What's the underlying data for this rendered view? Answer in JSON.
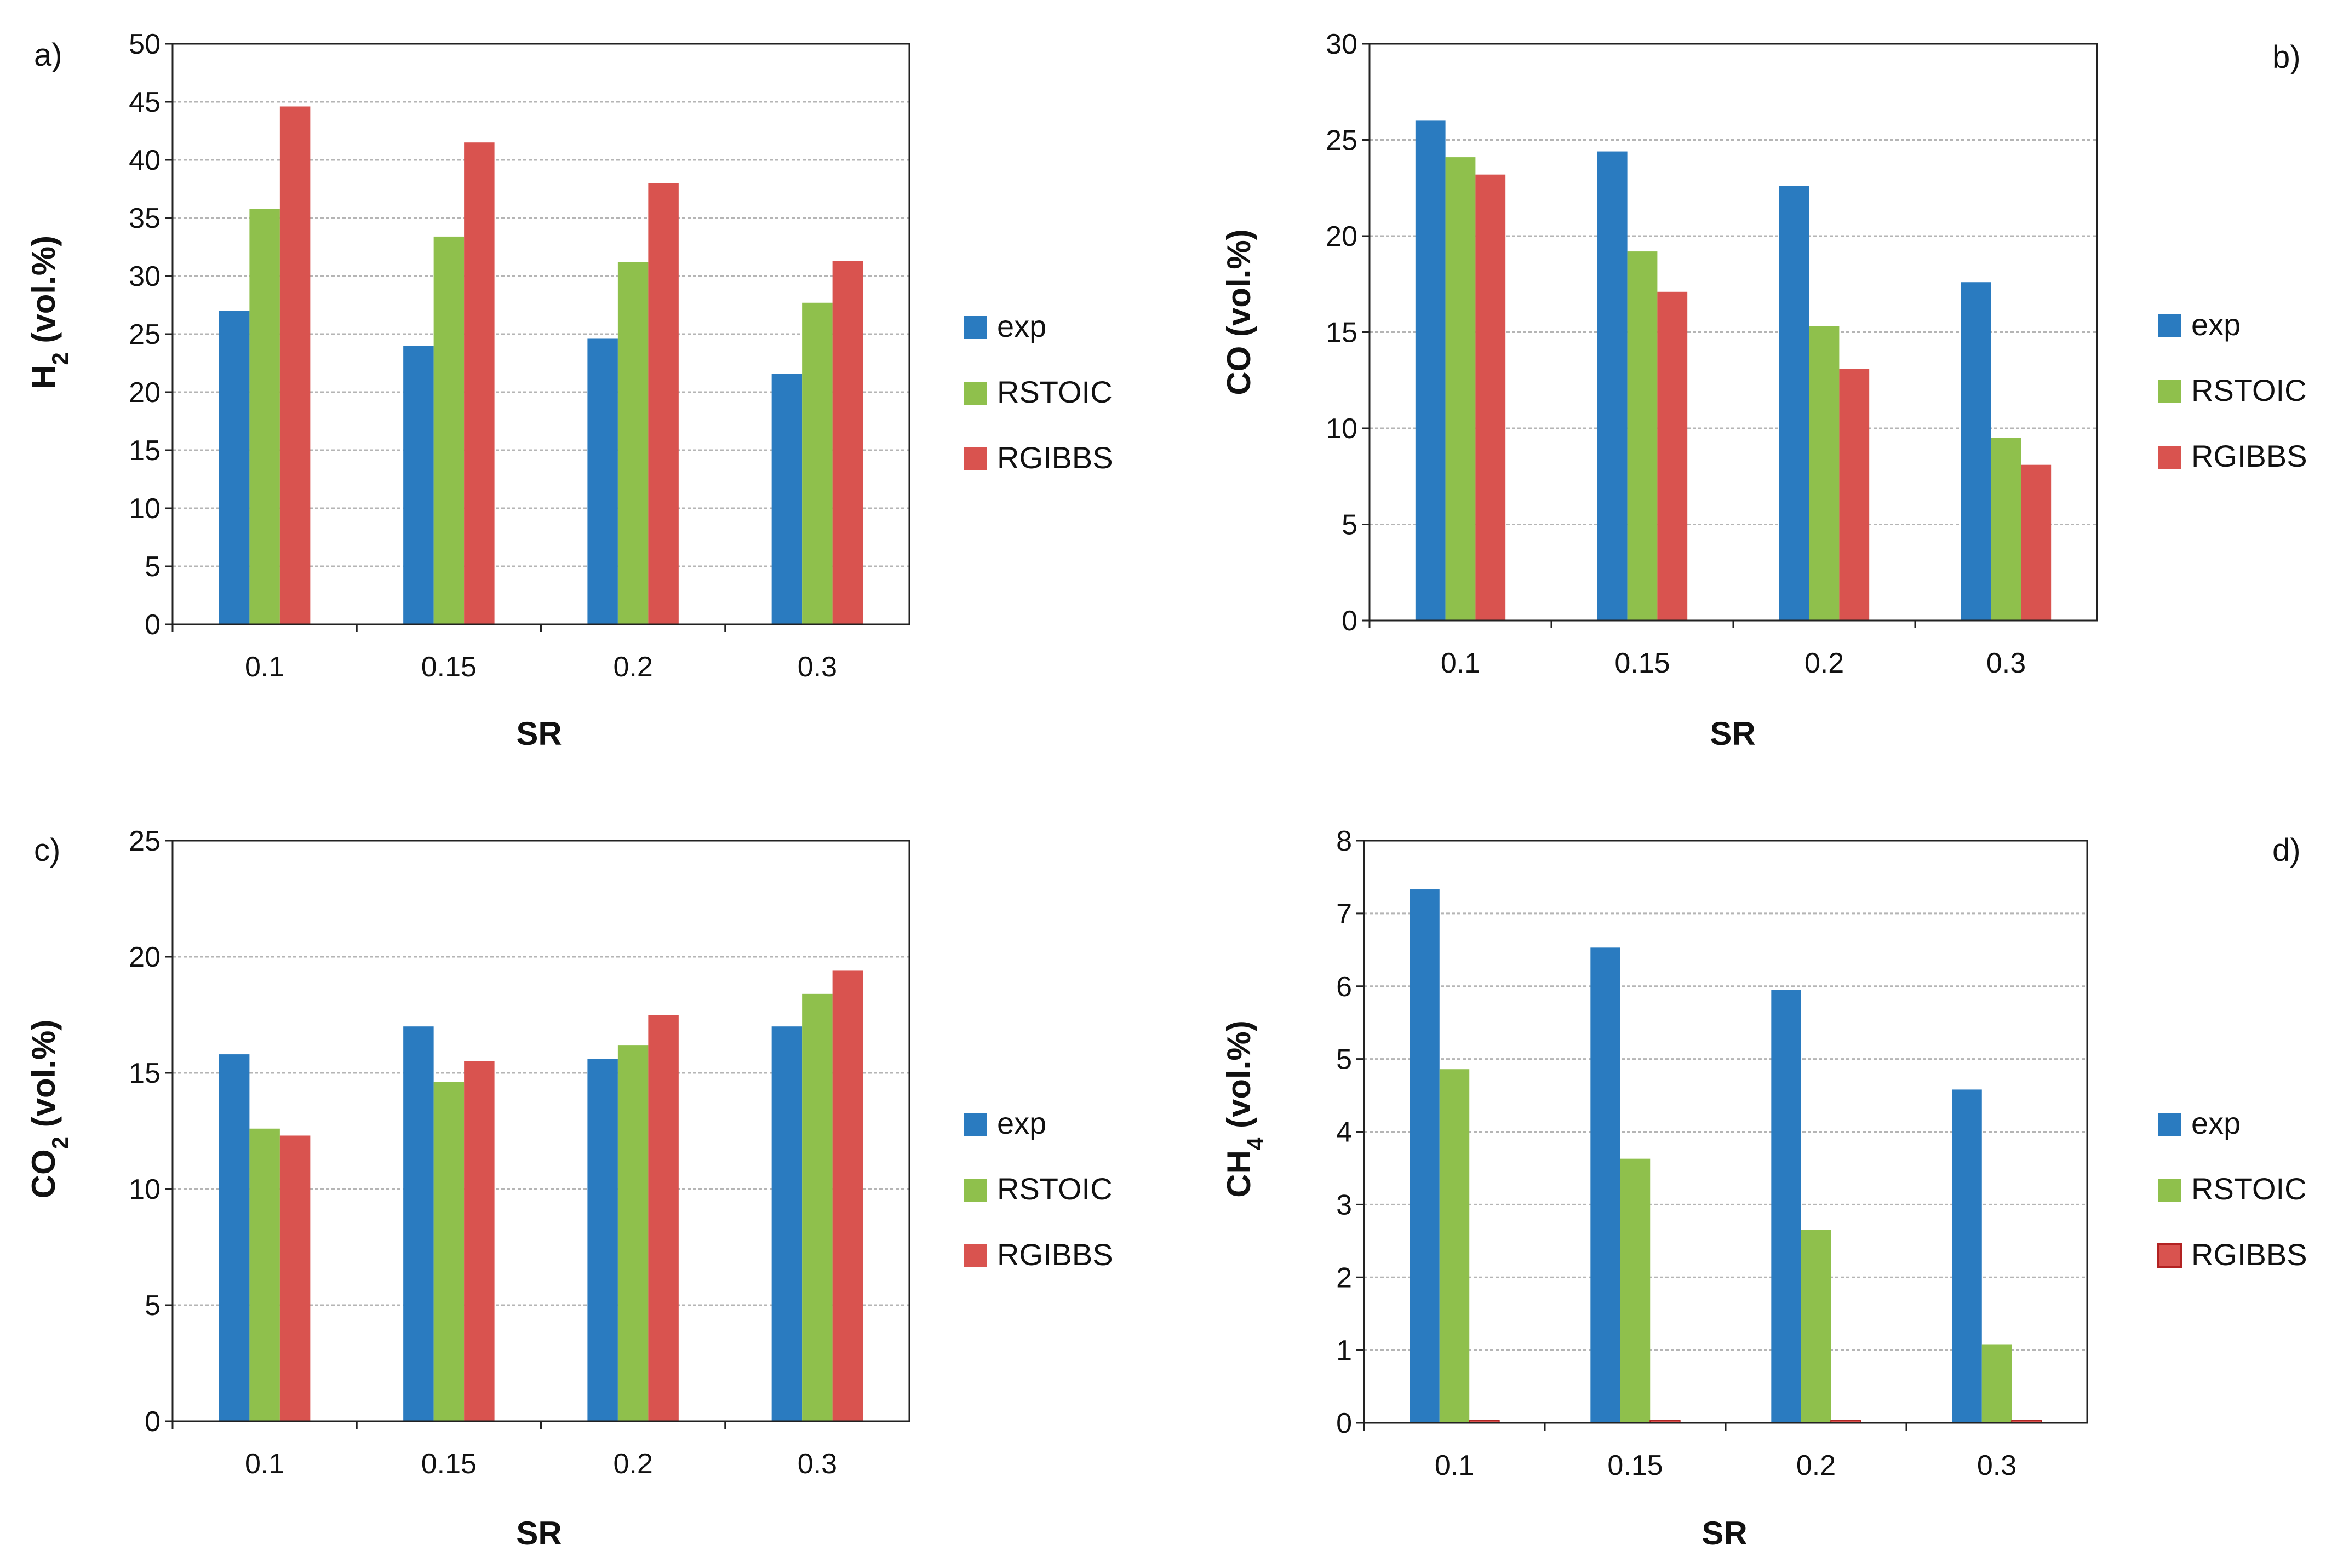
{
  "chart_data": [
    {
      "type": "bar",
      "panel_label": "a)",
      "categories": [
        "0.1",
        "0.15",
        "0.2",
        "0.3"
      ],
      "series": [
        {
          "name": "exp",
          "values": [
            27.0,
            24.0,
            24.6,
            21.6
          ]
        },
        {
          "name": "RSTOIC",
          "values": [
            35.8,
            33.4,
            31.2,
            27.7
          ]
        },
        {
          "name": "RGIBBS",
          "values": [
            44.6,
            41.5,
            38.0,
            31.3
          ]
        }
      ],
      "xlabel": "SR",
      "ylabel_main": "H",
      "ylabel_sub": "2",
      "ylabel_rest": " (vol.%)",
      "ylim": [
        0,
        50
      ],
      "yticks": [
        0,
        5,
        10,
        15,
        20,
        25,
        30,
        35,
        40,
        45,
        50
      ],
      "grid": true,
      "legend_position": "right"
    },
    {
      "type": "bar",
      "panel_label": "b)",
      "categories": [
        "0.1",
        "0.15",
        "0.2",
        "0.3"
      ],
      "series": [
        {
          "name": "exp",
          "values": [
            26.0,
            24.4,
            22.6,
            17.6
          ]
        },
        {
          "name": "RSTOIC",
          "values": [
            24.1,
            19.2,
            15.3,
            9.5
          ]
        },
        {
          "name": "RGIBBS",
          "values": [
            23.2,
            17.1,
            13.1,
            8.1
          ]
        }
      ],
      "xlabel": "SR",
      "ylabel_main": "CO",
      "ylabel_sub": "",
      "ylabel_rest": " (vol.%)",
      "ylim": [
        0,
        30
      ],
      "yticks": [
        0,
        5,
        10,
        15,
        20,
        25,
        30
      ],
      "grid": true,
      "legend_position": "right"
    },
    {
      "type": "bar",
      "panel_label": "c)",
      "categories": [
        "0.1",
        "0.15",
        "0.2",
        "0.3"
      ],
      "series": [
        {
          "name": "exp",
          "values": [
            15.8,
            17.0,
            15.6,
            17.0
          ]
        },
        {
          "name": "RSTOIC",
          "values": [
            12.6,
            14.6,
            16.2,
            18.4
          ]
        },
        {
          "name": "RGIBBS",
          "values": [
            12.3,
            15.5,
            17.5,
            19.4
          ]
        }
      ],
      "xlabel": "SR",
      "ylabel_main": "CO",
      "ylabel_sub": "2",
      "ylabel_rest": " (vol.%)",
      "ylim": [
        0,
        25
      ],
      "yticks": [
        0,
        5,
        10,
        15,
        20,
        25
      ],
      "grid": true,
      "legend_position": "right"
    },
    {
      "type": "bar",
      "panel_label": "d)",
      "categories": [
        "0.1",
        "0.15",
        "0.2",
        "0.3"
      ],
      "series": [
        {
          "name": "exp",
          "values": [
            7.33,
            6.53,
            5.95,
            4.58
          ]
        },
        {
          "name": "RSTOIC",
          "values": [
            4.86,
            3.63,
            2.65,
            1.08
          ]
        },
        {
          "name": "RGIBBS",
          "values": [
            0.03,
            0.03,
            0.03,
            0.03
          ]
        }
      ],
      "xlabel": "SR",
      "ylabel_main": "CH",
      "ylabel_sub": "4",
      "ylabel_rest": " (vol.%)",
      "ylim": [
        0,
        8
      ],
      "yticks": [
        0,
        1,
        2,
        3,
        4,
        5,
        6,
        7,
        8
      ],
      "grid": true,
      "legend_position": "right"
    }
  ],
  "colors": {
    "exp": "#2a7bc0",
    "RSTOIC": "#8fc04c",
    "RGIBBS": "#d9534f",
    "grid": "#b5b5b5",
    "axis": "#222222"
  }
}
